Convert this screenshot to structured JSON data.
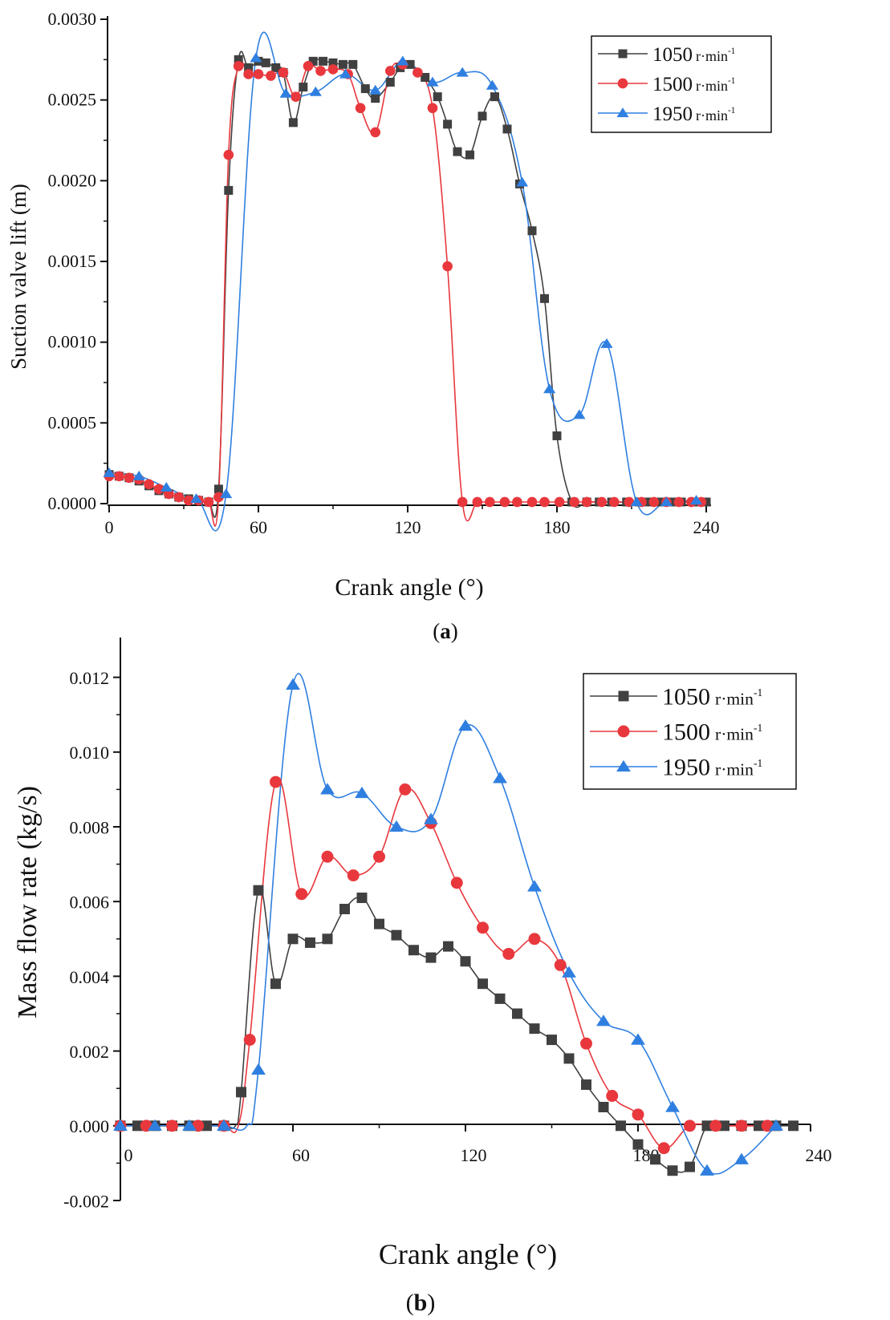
{
  "chart_data": [
    {
      "type": "line",
      "panel_label": "a",
      "xlabel": "Crank angle (°)",
      "ylabel": "Suction valve lift (m)",
      "xlim": [
        0,
        240
      ],
      "ylim": [
        0,
        0.003
      ],
      "xticks": [
        0,
        60,
        120,
        180,
        240
      ],
      "yticks": [
        0.0,
        0.0005,
        0.001,
        0.0015,
        0.002,
        0.0025,
        0.003
      ],
      "ytick_labels": [
        "0.0000",
        "0.0005",
        "0.0010",
        "0.0015",
        "0.0020",
        "0.0025",
        "0.0030"
      ],
      "legend_position": "top-right",
      "series": [
        {
          "name": "1050",
          "unit_label": "r·min",
          "unit_exp": "-1",
          "color": "#404040",
          "marker": "square",
          "x": [
            0,
            4,
            8,
            12,
            16,
            20,
            24,
            28,
            32,
            36,
            40,
            44,
            48,
            52,
            56,
            60,
            63,
            67,
            70,
            74,
            78,
            82,
            86,
            90,
            94,
            98,
            103,
            107,
            113,
            117,
            121,
            127,
            132,
            136,
            140,
            145,
            150,
            155,
            160,
            165,
            170,
            175,
            180,
            186,
            192,
            197,
            202,
            208,
            213,
            217,
            222,
            226,
            230,
            235,
            240
          ],
          "y": [
            0.00018,
            0.00017,
            0.00016,
            0.00014,
            0.00011,
            8e-05,
            6e-05,
            4e-05,
            3e-05,
            2e-05,
            1e-05,
            9e-05,
            0.00194,
            0.00275,
            0.0027,
            0.00274,
            0.00273,
            0.0027,
            0.00267,
            0.00236,
            0.00258,
            0.00274,
            0.00274,
            0.00273,
            0.00272,
            0.00272,
            0.00257,
            0.00251,
            0.00261,
            0.0027,
            0.00272,
            0.00264,
            0.00252,
            0.00235,
            0.00218,
            0.00216,
            0.0024,
            0.00252,
            0.00232,
            0.00198,
            0.00169,
            0.00127,
            0.00042,
            1e-05,
            1e-05,
            1e-05,
            1e-05,
            1e-05,
            1e-05,
            1e-05,
            1e-05,
            1e-05,
            1e-05,
            1e-05,
            1e-05
          ]
        },
        {
          "name": "1500",
          "unit_label": "r·min",
          "unit_exp": "-1",
          "color": "#e8383d",
          "marker": "circle",
          "x": [
            0,
            4,
            8,
            12,
            16,
            20,
            24,
            28,
            32,
            36,
            40,
            44,
            48,
            52,
            56,
            60,
            65,
            70,
            75,
            80,
            85,
            90,
            96,
            101,
            107,
            113,
            118,
            124,
            130,
            136,
            142,
            148,
            153,
            159,
            164,
            170,
            175,
            181,
            187,
            192,
            198,
            203,
            209,
            214,
            219,
            224,
            229,
            234,
            238
          ],
          "y": [
            0.00017,
            0.00017,
            0.00016,
            0.00015,
            0.00012,
            9e-05,
            6e-05,
            4e-05,
            2e-05,
            2e-05,
            1e-05,
            4e-05,
            0.00216,
            0.00271,
            0.00266,
            0.00266,
            0.00265,
            0.00267,
            0.00252,
            0.00271,
            0.00268,
            0.00269,
            0.00266,
            0.00245,
            0.0023,
            0.00268,
            0.00272,
            0.00267,
            0.00245,
            0.00147,
            1e-05,
            1e-05,
            1e-05,
            1e-05,
            1e-05,
            1e-05,
            1e-05,
            1e-05,
            1e-05,
            1e-05,
            1e-05,
            1e-05,
            1e-05,
            1e-05,
            1e-05,
            1e-05,
            1e-05,
            1e-05,
            1e-05
          ]
        },
        {
          "name": "1950",
          "unit_label": "r·min",
          "unit_exp": "-1",
          "color": "#2f7fe0",
          "marker": "triangle",
          "x": [
            0,
            12,
            23,
            35,
            47,
            59,
            71,
            83,
            95,
            107,
            118,
            130,
            142,
            154,
            166,
            177,
            189,
            200,
            212,
            224,
            236
          ],
          "y": [
            0.00019,
            0.00017,
            0.0001,
            3e-05,
            6e-05,
            0.00276,
            0.00254,
            0.00255,
            0.00266,
            0.00256,
            0.00274,
            0.00261,
            0.00267,
            0.00259,
            0.00199,
            0.00071,
            0.00055,
            0.00099,
            1e-05,
            1e-05,
            2e-05
          ]
        }
      ]
    },
    {
      "type": "line",
      "panel_label": "b",
      "xlabel": "Crank angle (°)",
      "ylabel": "Mass flow rate (kg/s)",
      "xlim": [
        0,
        240
      ],
      "ylim": [
        -0.002,
        0.013
      ],
      "xticks": [
        0,
        60,
        120,
        180,
        240
      ],
      "yticks": [
        -0.002,
        0.0,
        0.002,
        0.004,
        0.006,
        0.008,
        0.01,
        0.012
      ],
      "ytick_labels": [
        "-0.002",
        "0.000",
        "0.002",
        "0.004",
        "0.006",
        "0.008",
        "0.010",
        "0.012"
      ],
      "legend_position": "top-right",
      "series": [
        {
          "name": "1050",
          "unit_label": "r·min",
          "unit_exp": "-1",
          "color": "#404040",
          "marker": "square",
          "x": [
            0,
            6,
            12,
            18,
            24,
            30,
            36,
            42,
            48,
            54,
            60,
            66,
            72,
            78,
            84,
            90,
            96,
            102,
            108,
            114,
            120,
            126,
            132,
            138,
            144,
            150,
            156,
            162,
            168,
            174,
            180,
            186,
            192,
            198,
            204,
            210,
            216,
            222,
            228,
            234
          ],
          "y": [
            0,
            0,
            0,
            0,
            0,
            0,
            0,
            0.0009,
            0.0063,
            0.0038,
            0.005,
            0.0049,
            0.005,
            0.0058,
            0.0061,
            0.0054,
            0.0051,
            0.0047,
            0.0045,
            0.0048,
            0.0044,
            0.0038,
            0.0034,
            0.003,
            0.0026,
            0.0023,
            0.0018,
            0.0011,
            0.0005,
            0,
            -0.0005,
            -0.0009,
            -0.0012,
            -0.0011,
            0,
            0,
            0,
            0,
            0,
            0
          ],
          "path_x": [
            0,
            6,
            12,
            18,
            24,
            30,
            36,
            40,
            42,
            48,
            54,
            60,
            66,
            72,
            78,
            84,
            90,
            96,
            102,
            108,
            114,
            120,
            126,
            132,
            138,
            144,
            150,
            156,
            162,
            168,
            174,
            180,
            186,
            192,
            198,
            204,
            210,
            216,
            222,
            228,
            234
          ],
          "path_y": [
            0,
            0,
            0,
            0,
            0,
            0,
            0,
            0,
            0.0009,
            0.0063,
            0.0038,
            0.005,
            0.0049,
            0.005,
            0.0058,
            0.0061,
            0.0054,
            0.0051,
            0.0047,
            0.0045,
            0.0048,
            0.0044,
            0.0038,
            0.0034,
            0.003,
            0.0026,
            0.0023,
            0.0018,
            0.0011,
            0.0005,
            0,
            -0.0005,
            -0.0009,
            -0.0012,
            -0.0011,
            0,
            0,
            0,
            0,
            0,
            0
          ]
        },
        {
          "name": "1500",
          "unit_label": "r·min",
          "unit_exp": "-1",
          "color": "#e8383d",
          "marker": "circle",
          "x": [
            0,
            9,
            18,
            27,
            36,
            45,
            54,
            63,
            72,
            81,
            90,
            99,
            108,
            117,
            126,
            135,
            144,
            153,
            162,
            171,
            180,
            189,
            198,
            207,
            216,
            225
          ],
          "y": [
            0,
            0,
            0,
            0,
            0,
            0.0023,
            0.0092,
            0.0062,
            0.0072,
            0.0067,
            0.0072,
            0.009,
            0.0081,
            0.0065,
            0.0053,
            0.0046,
            0.005,
            0.0043,
            0.0022,
            0.0008,
            0.0003,
            -0.0006,
            0,
            0,
            0,
            0
          ],
          "path_x": [
            0,
            9,
            18,
            27,
            36,
            41,
            45,
            54,
            63,
            72,
            81,
            90,
            99,
            108,
            117,
            126,
            135,
            144,
            153,
            162,
            171,
            180,
            189,
            198,
            207,
            216,
            225
          ],
          "path_y": [
            0,
            0,
            0,
            0,
            0,
            0,
            0.0023,
            0.0092,
            0.0062,
            0.0072,
            0.0067,
            0.0072,
            0.009,
            0.0081,
            0.0065,
            0.0053,
            0.0046,
            0.005,
            0.0043,
            0.0022,
            0.0008,
            0.0003,
            -0.0006,
            0,
            0,
            0,
            0
          ]
        },
        {
          "name": "1950",
          "unit_label": "r·min",
          "unit_exp": "-1",
          "color": "#2f7fe0",
          "marker": "triangle",
          "x": [
            0,
            12,
            24,
            36,
            48,
            60,
            72,
            84,
            96,
            108,
            120,
            132,
            144,
            156,
            168,
            180,
            192,
            204,
            216,
            228
          ],
          "y": [
            0,
            0,
            0,
            0,
            0.0015,
            0.0118,
            0.009,
            0.0089,
            0.008,
            0.0082,
            0.0107,
            0.0093,
            0.0064,
            0.0041,
            0.0028,
            0.0023,
            0.0005,
            -0.0012,
            -0.0009,
            0
          ],
          "path_x": [
            0,
            12,
            24,
            36,
            44,
            48,
            60,
            72,
            84,
            96,
            108,
            120,
            132,
            144,
            156,
            168,
            180,
            192,
            204,
            216,
            228
          ],
          "path_y": [
            0,
            0,
            0,
            0,
            0,
            0.0015,
            0.0118,
            0.009,
            0.0089,
            0.008,
            0.0082,
            0.0107,
            0.0093,
            0.0064,
            0.0041,
            0.0028,
            0.0023,
            0.0005,
            -0.0012,
            -0.0009,
            0
          ]
        }
      ]
    }
  ]
}
